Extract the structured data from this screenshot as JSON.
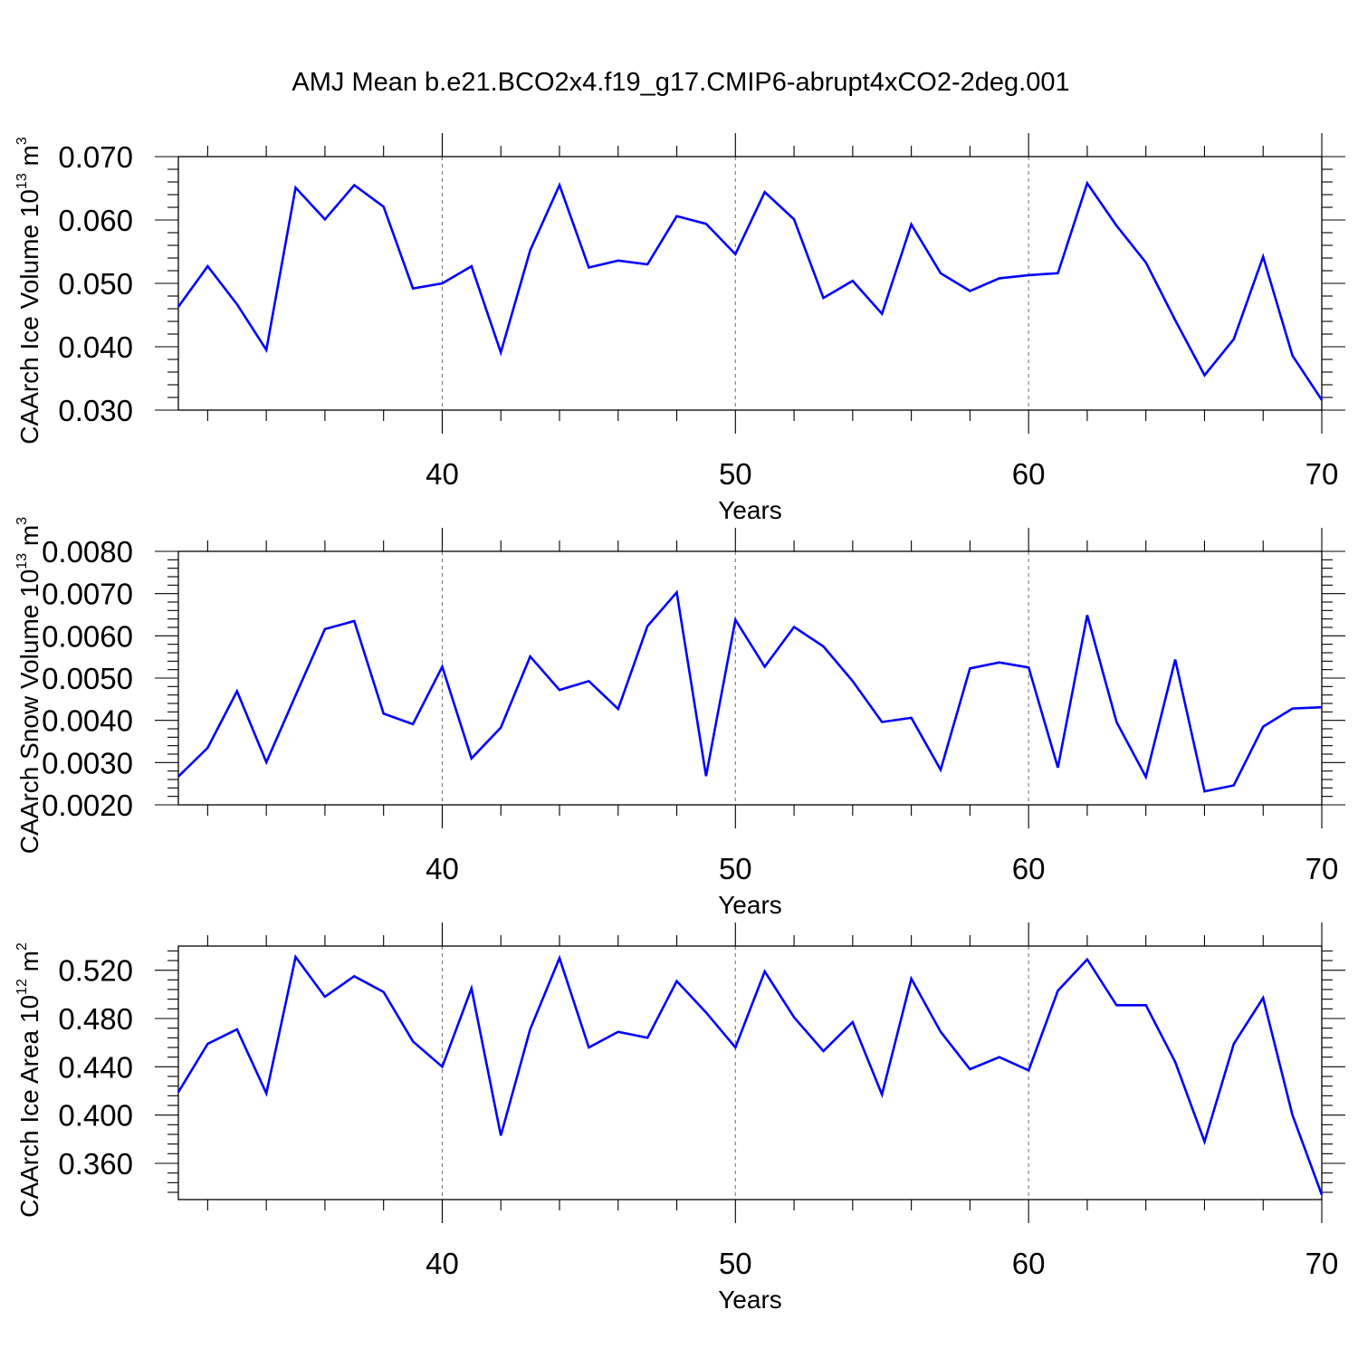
{
  "figure": {
    "title": "AMJ Mean b.e21.BCO2x4.f19_g17.CMIP6-abrupt4xCO2-2deg.001",
    "line_color": "#0000ff"
  },
  "chart_data": [
    {
      "type": "line",
      "ylabel": "CAArch Ice Volume 10",
      "ylabel_exp": "13",
      "ylabel_unit": " m",
      "ylabel_unit_exp": "3",
      "xlabel": "Years",
      "xlim": [
        31,
        70
      ],
      "ylim": [
        0.03,
        0.07
      ],
      "x_ticks": [
        40,
        50,
        60,
        70
      ],
      "x_tick_labels": [
        "40",
        "50",
        "60",
        "70"
      ],
      "y_ticks": [
        0.03,
        0.04,
        0.05,
        0.06,
        0.07
      ],
      "y_tick_labels": [
        "0.030",
        "0.040",
        "0.050",
        "0.060",
        "0.070"
      ],
      "grid": "vertical dashed at major x ticks",
      "series": [
        {
          "x": [
            31,
            32,
            33,
            34,
            35,
            36,
            37,
            38,
            39,
            40,
            41,
            42,
            43,
            44,
            45,
            46,
            47,
            48,
            49,
            50,
            51,
            52,
            53,
            54,
            55,
            56,
            57,
            58,
            59,
            60,
            61,
            62,
            63,
            64,
            65,
            66,
            67,
            68,
            69,
            70
          ],
          "values": [
            0.0463,
            0.0527,
            0.0467,
            0.0395,
            0.0651,
            0.0601,
            0.0655,
            0.0621,
            0.0492,
            0.05,
            0.0527,
            0.0391,
            0.0552,
            0.0655,
            0.0525,
            0.0536,
            0.053,
            0.0606,
            0.0594,
            0.0546,
            0.0644,
            0.0601,
            0.0477,
            0.0504,
            0.0452,
            0.0593,
            0.0516,
            0.0488,
            0.0508,
            0.0513,
            0.0516,
            0.0658,
            0.0591,
            0.0533,
            0.0442,
            0.0355,
            0.0412,
            0.0542,
            0.0386,
            0.0316
          ]
        }
      ]
    },
    {
      "type": "line",
      "ylabel": "CAArch Snow Volume 10",
      "ylabel_exp": "13",
      "ylabel_unit": " m",
      "ylabel_unit_exp": "3",
      "xlabel": "Years",
      "xlim": [
        31,
        70
      ],
      "ylim": [
        0.002,
        0.008
      ],
      "x_ticks": [
        40,
        50,
        60,
        70
      ],
      "x_tick_labels": [
        "40",
        "50",
        "60",
        "70"
      ],
      "y_ticks": [
        0.002,
        0.003,
        0.004,
        0.005,
        0.006,
        0.007,
        0.008
      ],
      "y_tick_labels": [
        "0.0020",
        "0.0030",
        "0.0040",
        "0.0050",
        "0.0060",
        "0.0070",
        "0.0080"
      ],
      "grid": "vertical dashed at major x ticks",
      "series": [
        {
          "x": [
            31,
            32,
            33,
            34,
            35,
            36,
            37,
            38,
            39,
            40,
            41,
            42,
            43,
            44,
            45,
            46,
            47,
            48,
            49,
            50,
            51,
            52,
            53,
            54,
            55,
            56,
            57,
            58,
            59,
            60,
            61,
            62,
            63,
            64,
            65,
            66,
            67,
            68,
            69,
            70
          ],
          "values": [
            0.00267,
            0.00335,
            0.00469,
            0.00301,
            0.00459,
            0.00616,
            0.00635,
            0.00416,
            0.00391,
            0.00527,
            0.0031,
            0.00383,
            0.00551,
            0.00472,
            0.00493,
            0.00427,
            0.00623,
            0.00703,
            0.00268,
            0.00638,
            0.00527,
            0.00621,
            0.00575,
            0.00493,
            0.00396,
            0.00406,
            0.00283,
            0.00523,
            0.00537,
            0.00525,
            0.00288,
            0.00649,
            0.00396,
            0.00266,
            0.00544,
            0.00232,
            0.00246,
            0.00385,
            0.00428,
            0.00431
          ]
        }
      ]
    },
    {
      "type": "line",
      "ylabel": "CAArch Ice Area 10",
      "ylabel_exp": "12",
      "ylabel_unit": " m",
      "ylabel_unit_exp": "2",
      "xlabel": "Years",
      "xlim": [
        31,
        70
      ],
      "ylim": [
        0.33,
        0.54
      ],
      "x_ticks": [
        40,
        50,
        60,
        70
      ],
      "x_tick_labels": [
        "40",
        "50",
        "60",
        "70"
      ],
      "y_ticks": [
        0.36,
        0.4,
        0.44,
        0.48,
        0.52
      ],
      "y_tick_labels": [
        "0.360",
        "0.400",
        "0.440",
        "0.480",
        "0.520"
      ],
      "grid": "vertical dashed at major x ticks",
      "series": [
        {
          "x": [
            31,
            32,
            33,
            34,
            35,
            36,
            37,
            38,
            39,
            40,
            41,
            42,
            43,
            44,
            45,
            46,
            47,
            48,
            49,
            50,
            51,
            52,
            53,
            54,
            55,
            56,
            57,
            58,
            59,
            60,
            61,
            62,
            63,
            64,
            65,
            66,
            67,
            68,
            69,
            70
          ],
          "values": [
            0.419,
            0.459,
            0.471,
            0.418,
            0.531,
            0.498,
            0.515,
            0.502,
            0.461,
            0.44,
            0.505,
            0.383,
            0.471,
            0.53,
            0.456,
            0.469,
            0.464,
            0.511,
            0.485,
            0.456,
            0.519,
            0.481,
            0.453,
            0.477,
            0.417,
            0.513,
            0.469,
            0.438,
            0.448,
            0.437,
            0.503,
            0.529,
            0.491,
            0.491,
            0.444,
            0.378,
            0.459,
            0.497,
            0.4,
            0.334
          ]
        }
      ]
    }
  ]
}
